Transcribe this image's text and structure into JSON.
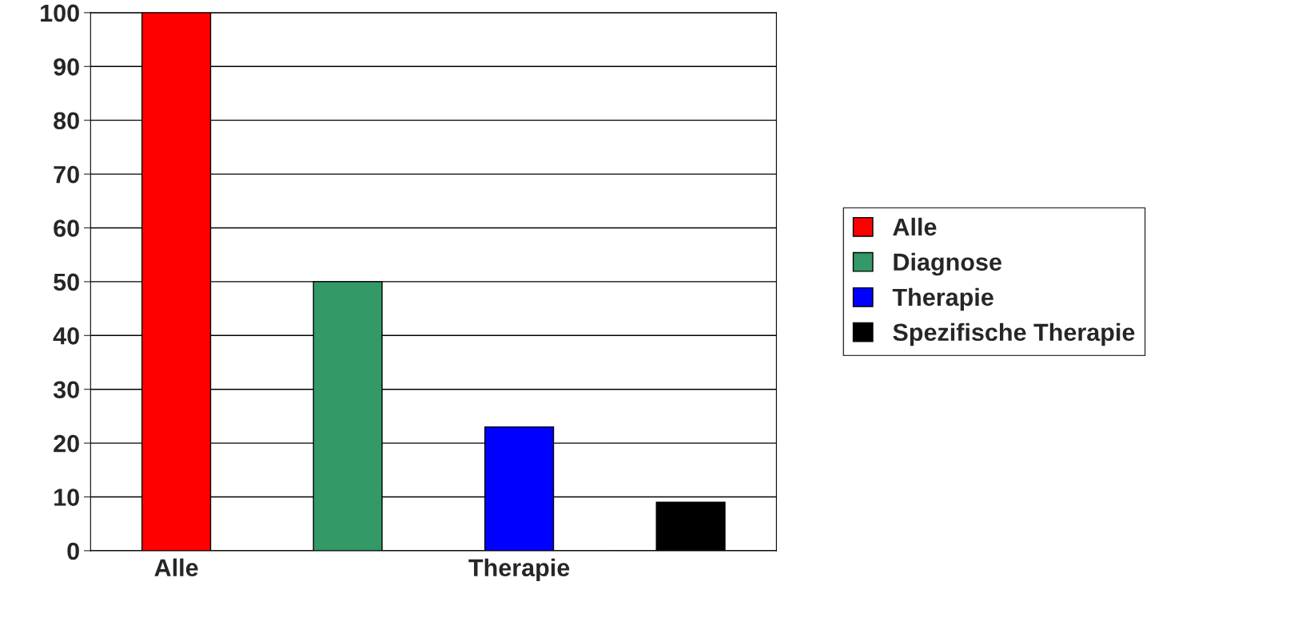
{
  "chart_data": {
    "type": "bar",
    "categories": [
      "Alle",
      null,
      "Therapie",
      null
    ],
    "series": [
      {
        "name": "Alle",
        "color": "#ff0000",
        "values": [
          100,
          null,
          null,
          null
        ]
      },
      {
        "name": "Diagnose",
        "color": "#339966",
        "values": [
          null,
          50,
          null,
          null
        ]
      },
      {
        "name": "Therapie",
        "color": "#0000ff",
        "values": [
          null,
          null,
          23,
          null
        ]
      },
      {
        "name": "Spezifische Therapie",
        "color": "#000000",
        "values": [
          null,
          null,
          null,
          9
        ]
      }
    ],
    "ylim": [
      0,
      100
    ],
    "yticks": [
      0,
      10,
      20,
      30,
      40,
      50,
      60,
      70,
      80,
      90,
      100
    ],
    "grid": "y",
    "legend": "right"
  }
}
